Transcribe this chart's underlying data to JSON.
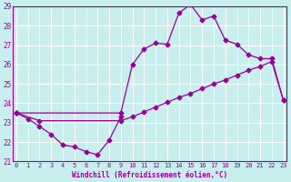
{
  "xlabel": "Windchill (Refroidissement éolien,°C)",
  "x_all": [
    0,
    1,
    2,
    3,
    4,
    5,
    6,
    7,
    8,
    9,
    10,
    11,
    12,
    13,
    14,
    15,
    16,
    17,
    18,
    19,
    20,
    21,
    22,
    23
  ],
  "line1_x": [
    0,
    1,
    2,
    3,
    4,
    5,
    6,
    7,
    8,
    9
  ],
  "line1_y": [
    23.5,
    23.2,
    22.8,
    22.4,
    21.85,
    21.75,
    21.5,
    21.35,
    22.1,
    23.3
  ],
  "line2_x": [
    0,
    2,
    9,
    10,
    11,
    12,
    13,
    14,
    15,
    16,
    17,
    18,
    19,
    20,
    21,
    22,
    23
  ],
  "line2_y": [
    23.5,
    23.1,
    23.1,
    23.3,
    23.55,
    23.8,
    24.05,
    24.3,
    24.5,
    24.75,
    25.0,
    25.2,
    25.45,
    25.7,
    25.9,
    26.15,
    24.15
  ],
  "line3_x": [
    0,
    9,
    10,
    11,
    12,
    13,
    14,
    15,
    16,
    17,
    18,
    19,
    20,
    21,
    22,
    23
  ],
  "line3_y": [
    23.5,
    23.5,
    26.0,
    26.8,
    27.1,
    27.05,
    28.65,
    29.1,
    28.3,
    28.5,
    27.25,
    27.05,
    26.5,
    26.3,
    26.3,
    24.15
  ],
  "ylim": [
    21,
    29
  ],
  "xlim_min": -0.3,
  "xlim_max": 23.3,
  "yticks": [
    21,
    22,
    23,
    24,
    25,
    26,
    27,
    28,
    29
  ],
  "xticks": [
    0,
    1,
    2,
    3,
    4,
    5,
    6,
    7,
    8,
    9,
    10,
    11,
    12,
    13,
    14,
    15,
    16,
    17,
    18,
    19,
    20,
    21,
    22,
    23
  ],
  "line_color": "#990099",
  "bg_color": "#c8eeee",
  "grid_color": "#aadddd",
  "marker": "D",
  "markersize": 2.5,
  "linewidth": 0.9
}
